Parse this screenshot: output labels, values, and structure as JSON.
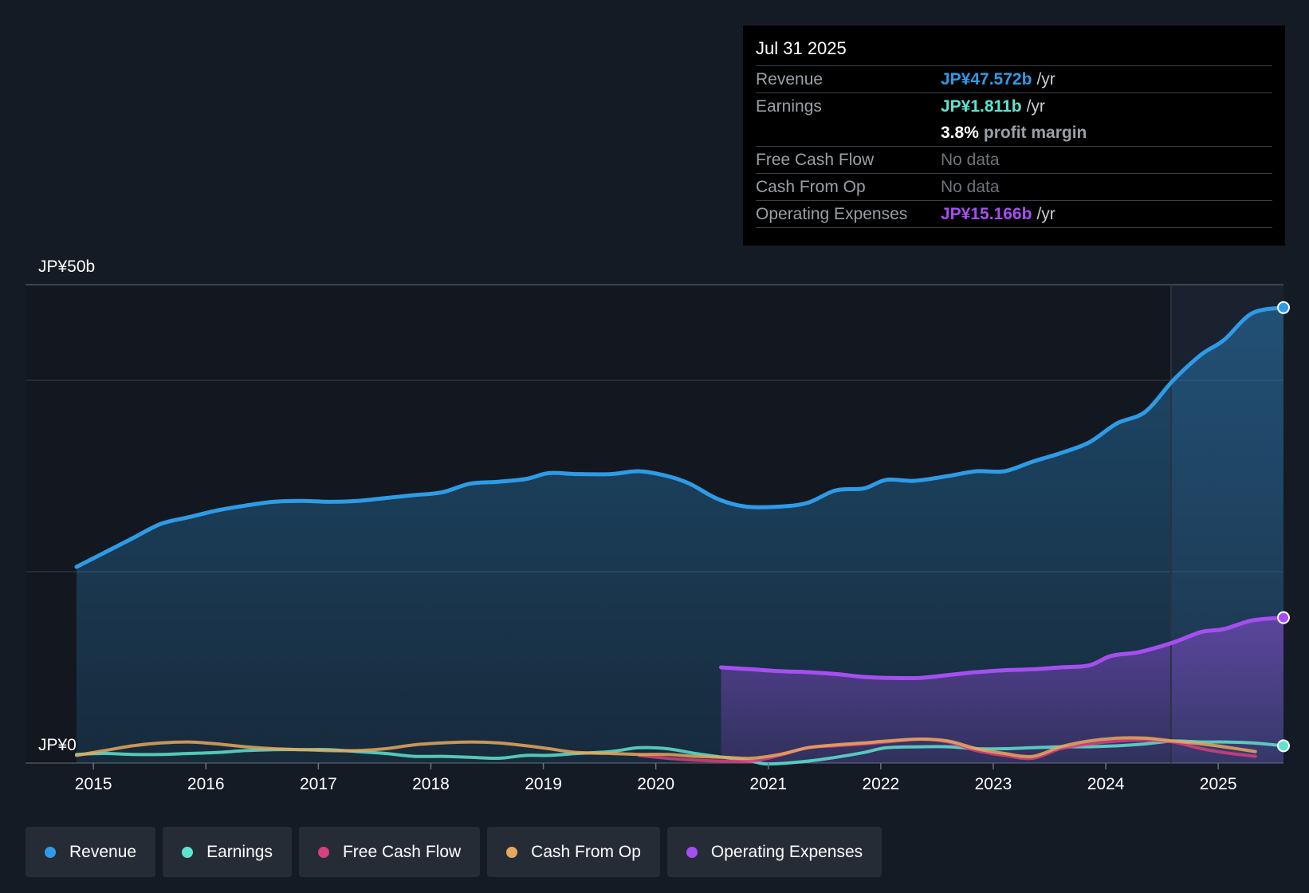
{
  "colors": {
    "revenue": "#2e9be6",
    "earnings": "#5fe3cf",
    "fcf": "#d6407f",
    "cfo": "#e8a85c",
    "opex": "#a54ff0"
  },
  "tooltip": {
    "date": "Jul 31 2025",
    "revenue_label": "Revenue",
    "revenue_value": "JP¥47.572b",
    "earnings_label": "Earnings",
    "earnings_value": "JP¥1.811b",
    "margin_value": "3.8%",
    "margin_text": "profit margin",
    "fcf_label": "Free Cash Flow",
    "fcf_value": "No data",
    "cfo_label": "Cash From Op",
    "cfo_value": "No data",
    "opex_label": "Operating Expenses",
    "opex_value": "JP¥15.166b",
    "unit": "/yr"
  },
  "legend": [
    {
      "key": "revenue",
      "label": "Revenue"
    },
    {
      "key": "earnings",
      "label": "Earnings"
    },
    {
      "key": "fcf",
      "label": "Free Cash Flow"
    },
    {
      "key": "cfo",
      "label": "Cash From Op"
    },
    {
      "key": "opex",
      "label": "Operating Expenses"
    }
  ],
  "chart_data": {
    "type": "line",
    "title": "",
    "xlabel": "",
    "ylabel": "",
    "ylim": [
      0,
      50
    ],
    "y_tick_labels": [
      {
        "value": 50,
        "label": "JP¥50b"
      },
      {
        "value": 0,
        "label": "JP¥0"
      }
    ],
    "x_ticks": [
      "2015",
      "2016",
      "2017",
      "2018",
      "2019",
      "2020",
      "2021",
      "2022",
      "2023",
      "2024",
      "2025"
    ],
    "x_range": [
      2014.85,
      2025.58
    ],
    "forecast_start": 2024.58,
    "series": [
      {
        "name": "Revenue",
        "key": "revenue",
        "area": true,
        "points": [
          [
            2014.85,
            20.5
          ],
          [
            2015.1,
            22.0
          ],
          [
            2015.35,
            23.5
          ],
          [
            2015.6,
            25.0
          ],
          [
            2015.85,
            25.7
          ],
          [
            2016.1,
            26.4
          ],
          [
            2016.35,
            26.9
          ],
          [
            2016.6,
            27.3
          ],
          [
            2016.85,
            27.4
          ],
          [
            2017.1,
            27.3
          ],
          [
            2017.35,
            27.4
          ],
          [
            2017.6,
            27.7
          ],
          [
            2017.85,
            28.0
          ],
          [
            2018.1,
            28.3
          ],
          [
            2018.35,
            29.2
          ],
          [
            2018.6,
            29.4
          ],
          [
            2018.85,
            29.7
          ],
          [
            2019.05,
            30.3
          ],
          [
            2019.3,
            30.2
          ],
          [
            2019.6,
            30.2
          ],
          [
            2019.85,
            30.5
          ],
          [
            2020.1,
            30.0
          ],
          [
            2020.3,
            29.2
          ],
          [
            2020.55,
            27.6
          ],
          [
            2020.8,
            26.8
          ],
          [
            2021.1,
            26.8
          ],
          [
            2021.35,
            27.2
          ],
          [
            2021.6,
            28.5
          ],
          [
            2021.85,
            28.7
          ],
          [
            2022.05,
            29.6
          ],
          [
            2022.3,
            29.5
          ],
          [
            2022.6,
            30.0
          ],
          [
            2022.85,
            30.5
          ],
          [
            2023.1,
            30.5
          ],
          [
            2023.35,
            31.5
          ],
          [
            2023.6,
            32.4
          ],
          [
            2023.85,
            33.5
          ],
          [
            2024.1,
            35.5
          ],
          [
            2024.35,
            36.7
          ],
          [
            2024.6,
            40.0
          ],
          [
            2024.85,
            42.7
          ],
          [
            2025.05,
            44.2
          ],
          [
            2025.3,
            47.0
          ],
          [
            2025.58,
            47.6
          ]
        ]
      },
      {
        "name": "Operating Expenses",
        "key": "opex",
        "area": true,
        "points": [
          [
            2020.58,
            10.0
          ],
          [
            2020.85,
            9.8
          ],
          [
            2021.1,
            9.6
          ],
          [
            2021.35,
            9.5
          ],
          [
            2021.6,
            9.3
          ],
          [
            2021.85,
            9.0
          ],
          [
            2022.05,
            8.9
          ],
          [
            2022.35,
            8.9
          ],
          [
            2022.6,
            9.2
          ],
          [
            2022.85,
            9.5
          ],
          [
            2023.1,
            9.7
          ],
          [
            2023.35,
            9.8
          ],
          [
            2023.6,
            10.0
          ],
          [
            2023.85,
            10.2
          ],
          [
            2024.05,
            11.2
          ],
          [
            2024.3,
            11.6
          ],
          [
            2024.6,
            12.6
          ],
          [
            2024.85,
            13.7
          ],
          [
            2025.05,
            14.0
          ],
          [
            2025.3,
            14.9
          ],
          [
            2025.58,
            15.2
          ]
        ]
      },
      {
        "name": "Earnings",
        "key": "earnings",
        "area": false,
        "points": [
          [
            2014.85,
            0.9
          ],
          [
            2015.1,
            1.0
          ],
          [
            2015.35,
            0.9
          ],
          [
            2015.6,
            0.9
          ],
          [
            2015.85,
            1.0
          ],
          [
            2016.1,
            1.1
          ],
          [
            2016.35,
            1.3
          ],
          [
            2016.6,
            1.4
          ],
          [
            2016.85,
            1.4
          ],
          [
            2017.1,
            1.4
          ],
          [
            2017.35,
            1.2
          ],
          [
            2017.6,
            1.0
          ],
          [
            2017.85,
            0.7
          ],
          [
            2018.1,
            0.7
          ],
          [
            2018.35,
            0.6
          ],
          [
            2018.6,
            0.5
          ],
          [
            2018.85,
            0.8
          ],
          [
            2019.05,
            0.8
          ],
          [
            2019.3,
            1.0
          ],
          [
            2019.6,
            1.2
          ],
          [
            2019.85,
            1.6
          ],
          [
            2020.1,
            1.5
          ],
          [
            2020.35,
            1.0
          ],
          [
            2020.6,
            0.6
          ],
          [
            2020.85,
            0.2
          ],
          [
            2021.0,
            -0.1
          ],
          [
            2021.35,
            0.2
          ],
          [
            2021.6,
            0.6
          ],
          [
            2021.85,
            1.1
          ],
          [
            2022.05,
            1.6
          ],
          [
            2022.35,
            1.7
          ],
          [
            2022.6,
            1.7
          ],
          [
            2022.85,
            1.5
          ],
          [
            2023.1,
            1.5
          ],
          [
            2023.35,
            1.6
          ],
          [
            2023.6,
            1.7
          ],
          [
            2023.85,
            1.7
          ],
          [
            2024.1,
            1.8
          ],
          [
            2024.35,
            2.0
          ],
          [
            2024.6,
            2.3
          ],
          [
            2024.85,
            2.2
          ],
          [
            2025.05,
            2.2
          ],
          [
            2025.3,
            2.1
          ],
          [
            2025.58,
            1.8
          ]
        ]
      },
      {
        "name": "Free Cash Flow",
        "key": "fcf",
        "area": false,
        "points": [
          [
            2019.85,
            0.8
          ],
          [
            2020.1,
            0.5
          ],
          [
            2020.35,
            0.3
          ],
          [
            2020.6,
            0.2
          ],
          [
            2020.85,
            0.2
          ],
          [
            2021.1,
            0.8
          ],
          [
            2021.35,
            1.6
          ],
          [
            2021.6,
            1.8
          ],
          [
            2021.85,
            2.0
          ],
          [
            2022.05,
            2.2
          ],
          [
            2022.35,
            2.5
          ],
          [
            2022.6,
            2.2
          ],
          [
            2022.85,
            1.3
          ],
          [
            2023.1,
            0.8
          ],
          [
            2023.35,
            0.5
          ],
          [
            2023.6,
            1.5
          ],
          [
            2023.85,
            2.0
          ],
          [
            2024.1,
            2.3
          ],
          [
            2024.35,
            2.4
          ],
          [
            2024.6,
            2.2
          ],
          [
            2024.85,
            1.5
          ],
          [
            2025.05,
            1.1
          ],
          [
            2025.33,
            0.7
          ]
        ]
      },
      {
        "name": "Cash From Op",
        "key": "cfo",
        "area": false,
        "points": [
          [
            2014.85,
            0.8
          ],
          [
            2015.1,
            1.3
          ],
          [
            2015.35,
            1.8
          ],
          [
            2015.6,
            2.1
          ],
          [
            2015.85,
            2.2
          ],
          [
            2016.1,
            2.0
          ],
          [
            2016.35,
            1.7
          ],
          [
            2016.6,
            1.5
          ],
          [
            2016.85,
            1.4
          ],
          [
            2017.1,
            1.3
          ],
          [
            2017.35,
            1.3
          ],
          [
            2017.6,
            1.5
          ],
          [
            2017.85,
            1.9
          ],
          [
            2018.1,
            2.1
          ],
          [
            2018.35,
            2.2
          ],
          [
            2018.6,
            2.1
          ],
          [
            2018.85,
            1.8
          ],
          [
            2019.05,
            1.5
          ],
          [
            2019.3,
            1.1
          ],
          [
            2019.6,
            1.0
          ],
          [
            2019.85,
            0.9
          ],
          [
            2020.1,
            0.9
          ],
          [
            2020.35,
            0.7
          ],
          [
            2020.6,
            0.6
          ],
          [
            2020.85,
            0.5
          ],
          [
            2021.1,
            0.9
          ],
          [
            2021.35,
            1.6
          ],
          [
            2021.6,
            1.9
          ],
          [
            2021.85,
            2.1
          ],
          [
            2022.05,
            2.3
          ],
          [
            2022.35,
            2.5
          ],
          [
            2022.6,
            2.3
          ],
          [
            2022.85,
            1.5
          ],
          [
            2023.1,
            1.0
          ],
          [
            2023.35,
            0.7
          ],
          [
            2023.6,
            1.7
          ],
          [
            2023.85,
            2.3
          ],
          [
            2024.1,
            2.6
          ],
          [
            2024.35,
            2.6
          ],
          [
            2024.6,
            2.3
          ],
          [
            2024.85,
            2.0
          ],
          [
            2025.05,
            1.7
          ],
          [
            2025.33,
            1.2
          ]
        ]
      }
    ]
  }
}
